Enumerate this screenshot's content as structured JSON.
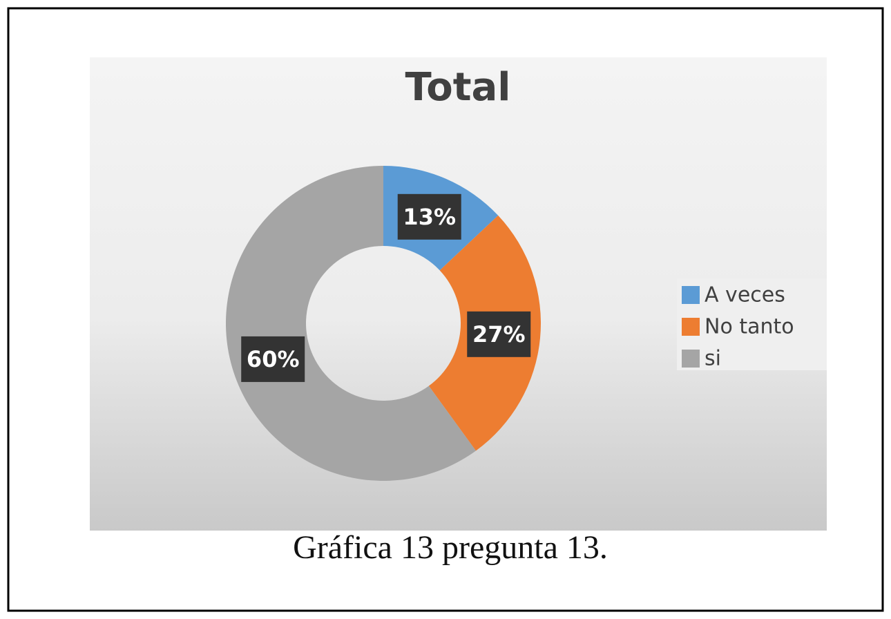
{
  "chart_data": {
    "type": "donut",
    "title": "Total",
    "categories": [
      "A veces",
      "No tanto",
      "si"
    ],
    "values": [
      13,
      27,
      60
    ],
    "value_labels": [
      "13%",
      "27%",
      "60%"
    ],
    "colors": [
      "#5b9bd5",
      "#ed7d31",
      "#a5a5a5"
    ],
    "legend": "right",
    "caption": "Gráfica 13 pregunta 13."
  }
}
